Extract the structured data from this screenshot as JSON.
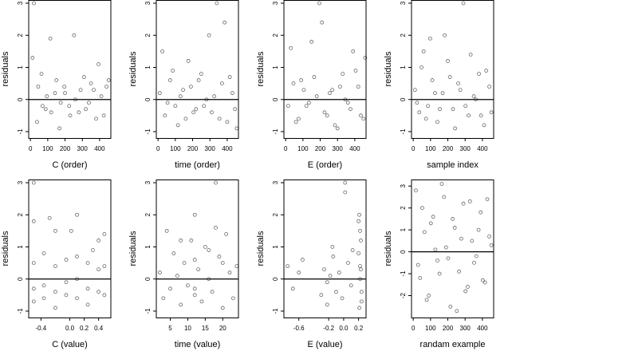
{
  "chart_data": [
    {
      "type": "scatter",
      "title": "",
      "xlabel": "C (order)",
      "ylabel": "residuals",
      "xlim": [
        -10,
        465
      ],
      "ylim": [
        -1.2,
        3.1
      ],
      "xticks": [
        0,
        100,
        200,
        300,
        400
      ],
      "xtick_labels": [
        "0",
        "100",
        "200",
        "300",
        "400"
      ],
      "yticks": [
        -1,
        0,
        1,
        2,
        3
      ],
      "ytick_labels": [
        "-1",
        "0",
        "1",
        "2",
        "3"
      ],
      "hline": 0,
      "grid": false,
      "marker": "open-circle",
      "points": {
        "x": [
          20,
          45,
          70,
          95,
          120,
          150,
          175,
          200,
          230,
          260,
          290,
          320,
          350,
          380,
          410,
          440,
          12,
          38,
          64,
          88,
          115,
          142,
          168,
          196,
          224,
          252,
          280,
          310,
          338,
          366,
          394,
          424,
          452
        ],
        "y": [
          3.0,
          0.4,
          -0.2,
          0.1,
          -0.4,
          0.6,
          -0.1,
          0.2,
          -0.5,
          0.0,
          0.3,
          -0.3,
          0.5,
          -0.6,
          0.1,
          0.4,
          1.3,
          -0.7,
          0.8,
          -0.3,
          1.9,
          0.2,
          -0.9,
          0.4,
          -0.2,
          2.0,
          -0.4,
          0.7,
          -0.1,
          0.3,
          1.1,
          -0.5,
          0.6
        ]
      }
    },
    {
      "type": "scatter",
      "title": "",
      "xlabel": "time (order)",
      "ylabel": "residuals",
      "xlim": [
        -10,
        465
      ],
      "ylim": [
        -1.2,
        3.1
      ],
      "xticks": [
        0,
        100,
        200,
        300,
        400
      ],
      "xtick_labels": [
        "0",
        "100",
        "200",
        "300",
        "400"
      ],
      "yticks": [
        -1,
        0,
        1,
        2,
        3
      ],
      "ytick_labels": [
        "-1",
        "0",
        "1",
        "2",
        "3"
      ],
      "hline": 0,
      "grid": false,
      "marker": "open-circle",
      "points": {
        "x": [
          10,
          40,
          70,
          100,
          130,
          160,
          190,
          220,
          250,
          280,
          310,
          340,
          370,
          400,
          430,
          455,
          25,
          55,
          85,
          115,
          145,
          175,
          205,
          235,
          265,
          295,
          325,
          355,
          385,
          415,
          445
        ],
        "y": [
          0.2,
          -0.5,
          0.6,
          -0.2,
          0.1,
          -0.6,
          0.4,
          -0.3,
          0.8,
          0.0,
          -0.4,
          3.0,
          0.5,
          -0.7,
          0.2,
          -0.9,
          1.5,
          -0.1,
          0.9,
          -0.8,
          0.3,
          1.2,
          -0.4,
          0.6,
          -0.2,
          2.0,
          0.1,
          -0.6,
          2.4,
          0.7,
          -0.3
        ]
      }
    },
    {
      "type": "scatter",
      "title": "",
      "xlabel": "E (order)",
      "ylabel": "residuals",
      "xlim": [
        -10,
        465
      ],
      "ylim": [
        -1.2,
        3.1
      ],
      "xticks": [
        0,
        100,
        200,
        300,
        400
      ],
      "xtick_labels": [
        "0",
        "100",
        "200",
        "300",
        "400"
      ],
      "yticks": [
        -1,
        0,
        1,
        2,
        3
      ],
      "ytick_labels": [
        "-1",
        "0",
        "1",
        "2",
        "3"
      ],
      "hline": 0,
      "grid": false,
      "marker": "open-circle",
      "points": {
        "x": [
          15,
          45,
          75,
          105,
          135,
          165,
          195,
          225,
          255,
          285,
          315,
          345,
          375,
          405,
          435,
          460,
          30,
          60,
          90,
          120,
          150,
          180,
          210,
          240,
          270,
          300,
          330,
          360,
          390,
          420,
          450
        ],
        "y": [
          -0.2,
          0.5,
          -0.6,
          0.3,
          -0.1,
          0.7,
          3.0,
          -0.4,
          0.2,
          -0.8,
          0.4,
          0.0,
          -0.3,
          0.9,
          -0.5,
          1.3,
          1.6,
          -0.7,
          0.6,
          -0.2,
          1.8,
          0.1,
          2.4,
          -0.5,
          0.3,
          -0.9,
          0.8,
          -0.1,
          1.5,
          0.4,
          -0.6
        ]
      }
    },
    {
      "type": "scatter",
      "title": "",
      "xlabel": "sample index",
      "ylabel": "residuals",
      "xlim": [
        -10,
        465
      ],
      "ylim": [
        -1.2,
        3.1
      ],
      "xticks": [
        0,
        100,
        200,
        300,
        400
      ],
      "xtick_labels": [
        "0",
        "100",
        "200",
        "300",
        "400"
      ],
      "yticks": [
        -1,
        0,
        1,
        2,
        3
      ],
      "ytick_labels": [
        "-1",
        "0",
        "1",
        "2",
        "3"
      ],
      "hline": 0,
      "grid": false,
      "marker": "open-circle",
      "points": {
        "x": [
          10,
          35,
          60,
          85,
          110,
          140,
          170,
          200,
          230,
          260,
          290,
          320,
          350,
          380,
          410,
          440,
          22,
          48,
          74,
          98,
          126,
          154,
          182,
          212,
          242,
          272,
          302,
          332,
          362,
          392,
          422,
          452
        ],
        "y": [
          0.3,
          -0.4,
          1.5,
          -0.2,
          0.6,
          -0.7,
          0.2,
          1.2,
          -0.3,
          0.5,
          3.0,
          -0.5,
          0.1,
          0.8,
          -0.8,
          0.4,
          -0.1,
          1.0,
          -0.6,
          1.9,
          0.2,
          -0.3,
          2.0,
          0.7,
          -0.9,
          0.3,
          -0.2,
          1.4,
          0.0,
          -0.5,
          0.9,
          -0.4
        ]
      }
    },
    {
      "type": "scatter",
      "title": "",
      "xlabel": "C (value)",
      "ylabel": "residuals",
      "xlim": [
        -0.57,
        0.57
      ],
      "ylim": [
        -1.2,
        3.1
      ],
      "xticks": [
        -0.4,
        0.0,
        0.2,
        0.4
      ],
      "xtick_labels": [
        "-0.4",
        "0.0",
        "0.2",
        "0.4"
      ],
      "yticks": [
        -1,
        0,
        1,
        2,
        3
      ],
      "ytick_labels": [
        "-1",
        "0",
        "1",
        "2",
        "3"
      ],
      "hline": 0,
      "grid": false,
      "marker": "open-circle",
      "points": {
        "x": [
          -0.5,
          -0.5,
          -0.5,
          -0.5,
          -0.5,
          -0.36,
          -0.36,
          -0.36,
          -0.2,
          -0.2,
          -0.2,
          -0.2,
          -0.05,
          -0.05,
          -0.05,
          0.1,
          0.1,
          0.1,
          0.1,
          0.25,
          0.25,
          0.25,
          0.4,
          0.4,
          0.4,
          0.48,
          0.48,
          0.48,
          -0.28,
          0.02,
          0.32
        ],
        "y": [
          3.0,
          1.8,
          0.5,
          -0.3,
          -0.7,
          0.8,
          -0.2,
          -0.6,
          1.5,
          0.4,
          -0.4,
          -0.9,
          0.6,
          -0.1,
          -0.5,
          2.0,
          0.7,
          0.0,
          -0.6,
          0.5,
          -0.3,
          -0.8,
          1.2,
          0.3,
          -0.4,
          1.4,
          0.4,
          -0.5,
          1.9,
          1.5,
          0.9
        ]
      }
    },
    {
      "type": "scatter",
      "title": "",
      "xlabel": "time (value)",
      "ylabel": "residuals",
      "xlim": [
        1,
        24.5
      ],
      "ylim": [
        -1.2,
        3.1
      ],
      "xticks": [
        5,
        10,
        15,
        20
      ],
      "xtick_labels": [
        "5",
        "10",
        "15",
        "20"
      ],
      "yticks": [
        -1,
        0,
        1,
        2,
        3
      ],
      "ytick_labels": [
        "-1",
        "0",
        "1",
        "2",
        "3"
      ],
      "hline": 0,
      "grid": false,
      "marker": "open-circle",
      "points": {
        "x": [
          2,
          3,
          4,
          5,
          6,
          7,
          8,
          9,
          10,
          11,
          12,
          12,
          13,
          14,
          15,
          16,
          17,
          18,
          19,
          20,
          21,
          22,
          23,
          24,
          8,
          12,
          16,
          20,
          12,
          18
        ],
        "y": [
          0.2,
          -0.6,
          1.5,
          -0.3,
          0.8,
          0.1,
          -0.8,
          0.5,
          -0.2,
          1.2,
          0.6,
          -0.5,
          0.3,
          -0.7,
          1.0,
          0.0,
          -0.4,
          3.0,
          0.7,
          -0.9,
          1.4,
          0.2,
          -0.6,
          0.4,
          1.2,
          2.0,
          0.9,
          0.5,
          -0.3,
          1.6
        ]
      }
    },
    {
      "type": "scatter",
      "title": "",
      "xlabel": "E (value)",
      "ylabel": "residuals",
      "xlim": [
        -0.8,
        0.3
      ],
      "ylim": [
        -1.2,
        3.1
      ],
      "xticks": [
        -0.6,
        -0.2,
        0.0,
        0.2
      ],
      "xtick_labels": [
        "-0.6",
        "-0.2",
        "0.0",
        "0.2"
      ],
      "yticks": [
        -1,
        0,
        1,
        2,
        3
      ],
      "ytick_labels": [
        "-1",
        "0",
        "1",
        "2",
        "3"
      ],
      "hline": 0,
      "grid": false,
      "marker": "open-circle",
      "points": {
        "x": [
          -0.75,
          -0.68,
          -0.6,
          -0.55,
          -0.3,
          -0.26,
          -0.22,
          -0.18,
          -0.14,
          -0.1,
          -0.06,
          -0.02,
          0.02,
          0.06,
          0.1,
          0.2,
          0.21,
          0.22,
          0.23,
          0.24,
          0.2,
          0.22,
          0.24,
          0.21,
          0.23,
          0.02,
          -0.15,
          0.22,
          -0.22,
          0.12
        ],
        "y": [
          0.4,
          -0.3,
          0.2,
          0.6,
          -0.5,
          0.3,
          -0.8,
          0.1,
          0.7,
          -0.4,
          0.2,
          -0.6,
          3.0,
          0.5,
          -0.2,
          1.8,
          -0.9,
          0.4,
          1.2,
          -0.4,
          0.8,
          0.0,
          -0.7,
          2.0,
          0.3,
          2.7,
          1.0,
          1.5,
          -0.1,
          0.9
        ]
      }
    },
    {
      "type": "scatter",
      "title": "",
      "xlabel": "randam example",
      "ylabel": "residuals",
      "xlim": [
        -10,
        465
      ],
      "ylim": [
        -3.0,
        3.3
      ],
      "xticks": [
        0,
        100,
        200,
        300,
        400
      ],
      "xtick_labels": [
        "0",
        "100",
        "200",
        "300",
        "400"
      ],
      "yticks": [
        -2,
        -1,
        0,
        1,
        2,
        3
      ],
      "ytick_labels": [
        "-2",
        "-1",
        "0",
        "1",
        "2",
        "3"
      ],
      "hline": 0,
      "grid": false,
      "marker": "open-circle",
      "points": {
        "x": [
          15,
          40,
          65,
          90,
          115,
          140,
          165,
          190,
          215,
          240,
          265,
          290,
          315,
          340,
          365,
          390,
          415,
          440,
          28,
          52,
          78,
          102,
          128,
          152,
          178,
          202,
          228,
          252,
          278,
          302,
          328,
          352,
          378,
          402,
          428,
          452
        ],
        "y": [
          2.8,
          -1.2,
          0.9,
          -2.0,
          1.6,
          -0.4,
          3.1,
          0.2,
          -2.5,
          1.1,
          -0.9,
          2.2,
          -1.6,
          0.5,
          -0.2,
          1.8,
          -1.4,
          0.7,
          -0.6,
          2.0,
          -2.2,
          1.3,
          0.1,
          -1.0,
          2.5,
          -0.3,
          1.5,
          -2.7,
          0.6,
          -1.8,
          2.3,
          -0.5,
          1.0,
          -1.3,
          2.4,
          0.3
        ]
      }
    }
  ]
}
